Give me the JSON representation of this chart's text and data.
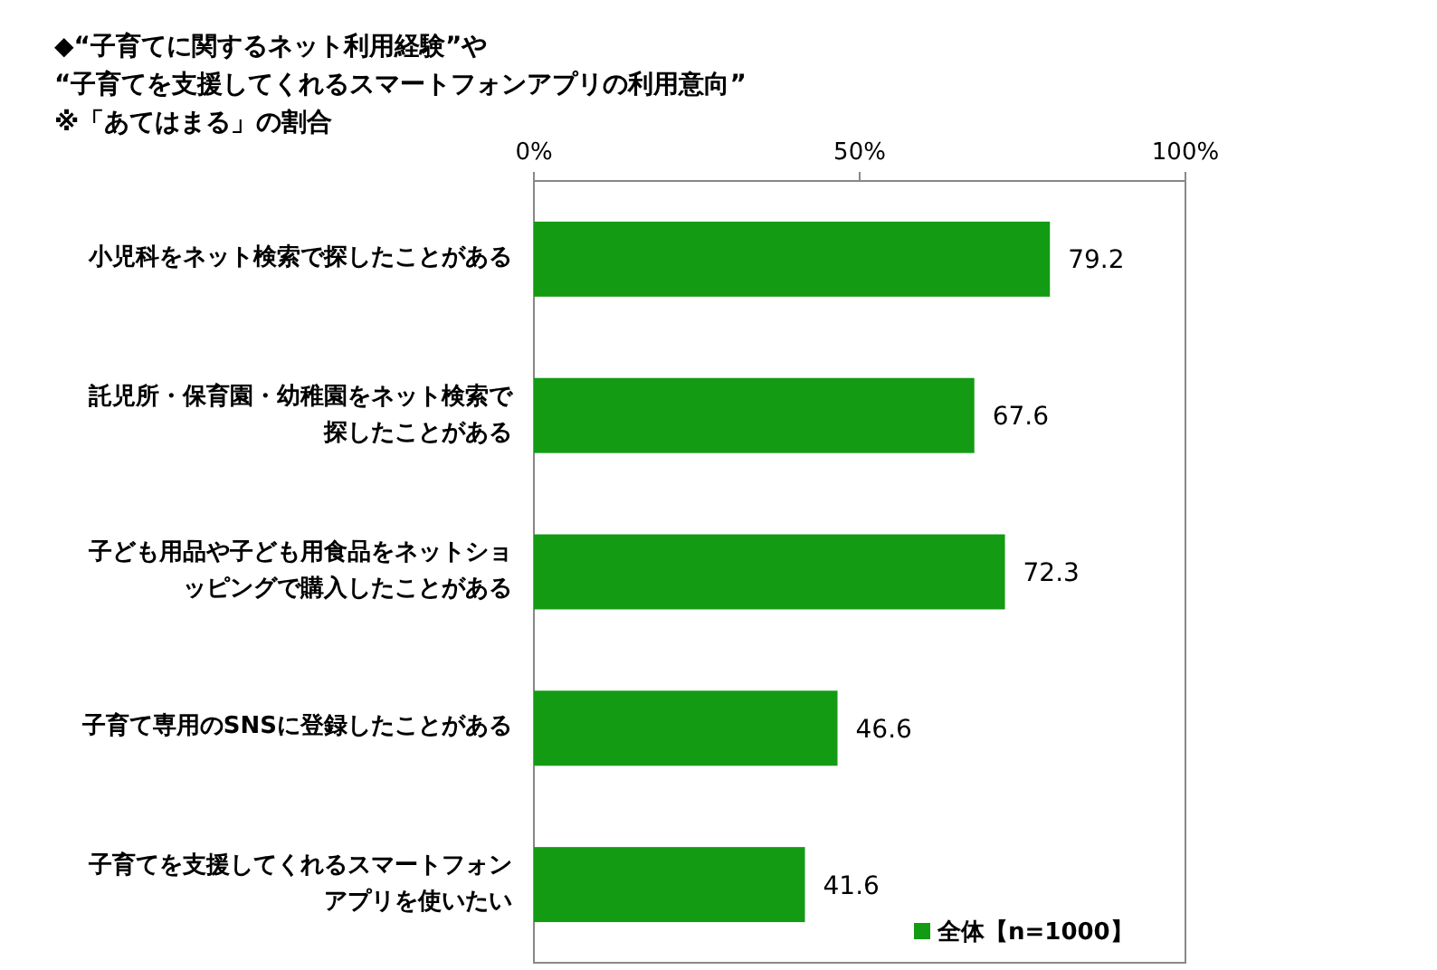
{
  "chart_data": {
    "type": "bar",
    "orientation": "horizontal",
    "title": "◆“子育てに関するネット利用経験”や\n“子育てを支援してくれるスマートフォンアプリの利用意向”",
    "subtitle": "※「あてはまる」の割合",
    "categories": [
      "小児科をネット検索で探したことがある",
      "託児所・保育園・幼稚園をネット検索で探したことがある",
      "子ども用品や子ども用食品をネットショッピングで購入したことがある",
      "子育て専用のSNSに登録したことがある",
      "子育てを支援してくれるスマートフォンアプリを使いたい"
    ],
    "series": [
      {
        "name": "全体【n=1000】",
        "color": "#139b13",
        "values": [
          79.2,
          67.6,
          72.3,
          46.6,
          41.6
        ]
      }
    ],
    "xlim": [
      0,
      100
    ],
    "xticks": [
      {
        "value": 0,
        "label": "0%"
      },
      {
        "value": 50,
        "label": "50%"
      },
      {
        "value": 100,
        "label": "100%"
      }
    ],
    "data_labels": true,
    "legend": "bottom right",
    "grid": false
  }
}
